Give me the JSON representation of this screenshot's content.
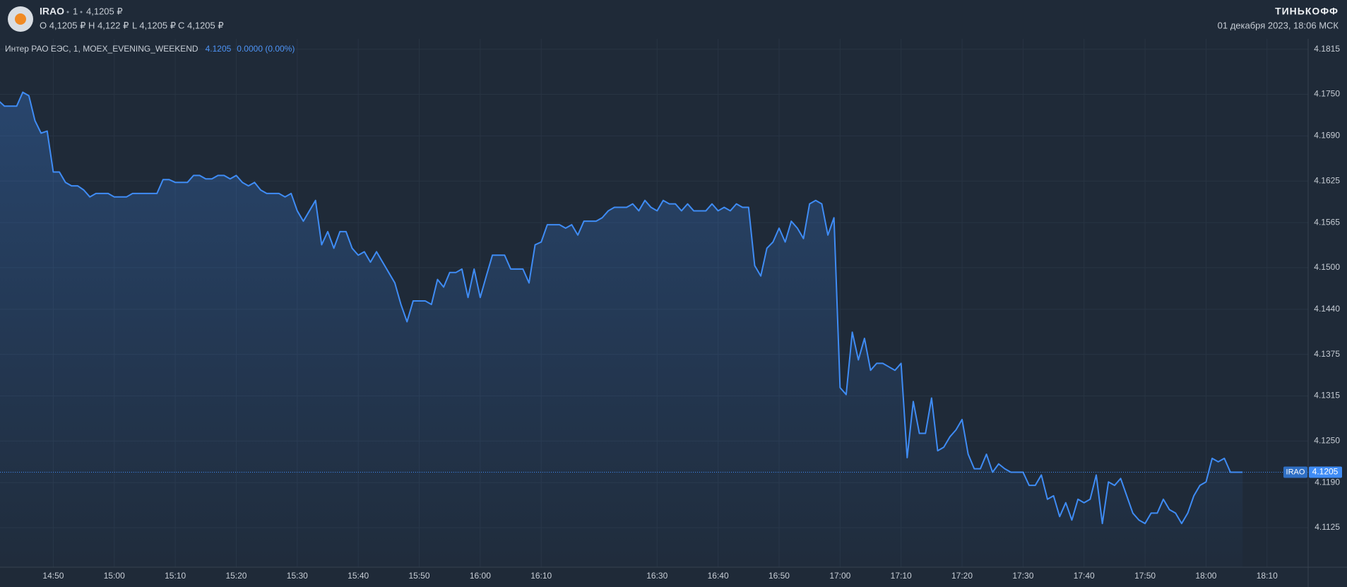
{
  "header": {
    "ticker": "IRAO",
    "interval": "1",
    "price": "4,1205 ₽",
    "ohlc": [
      "O 4,1205 ₽",
      "H 4,122 ₽",
      "L 4,1205 ₽",
      "C 4,1205 ₽"
    ],
    "brand": "ТИНЬКОФФ",
    "datetime": "01 декабря 2023, 18:06 МСК"
  },
  "chart_data": {
    "type": "line",
    "categories": [
      null,
      null,
      null,
      null,
      null,
      null,
      null,
      null,
      null,
      "14:50",
      null,
      null,
      null,
      null,
      null,
      null,
      null,
      null,
      null,
      "15:00",
      null,
      null,
      null,
      null,
      null,
      null,
      null,
      null,
      null,
      "15:10",
      null,
      null,
      null,
      null,
      null,
      null,
      null,
      null,
      null,
      "15:20",
      null,
      null,
      null,
      null,
      null,
      null,
      null,
      null,
      null,
      "15:30",
      null,
      null,
      null,
      null,
      null,
      null,
      null,
      null,
      null,
      "15:40",
      null,
      null,
      null,
      null,
      null,
      null,
      null,
      null,
      null,
      "15:50",
      null,
      null,
      null,
      null,
      null,
      null,
      null,
      null,
      null,
      "16:00",
      null,
      null,
      null,
      null,
      null,
      null,
      null,
      null,
      null,
      "16:10",
      null,
      null,
      null,
      null,
      null,
      null,
      null,
      null,
      null,
      null,
      null,
      null,
      null,
      null,
      null,
      null,
      null,
      null,
      "16:30",
      null,
      null,
      null,
      null,
      null,
      null,
      null,
      null,
      null,
      "16:40",
      null,
      null,
      null,
      null,
      null,
      null,
      null,
      null,
      null,
      "16:50",
      null,
      null,
      null,
      null,
      null,
      null,
      null,
      null,
      null,
      "17:00",
      null,
      null,
      null,
      null,
      null,
      null,
      null,
      null,
      null,
      "17:10",
      null,
      null,
      null,
      null,
      null,
      null,
      null,
      null,
      null,
      "17:20",
      null,
      null,
      null,
      null,
      null,
      null,
      null,
      null,
      null,
      "17:30",
      null,
      null,
      null,
      null,
      null,
      null,
      null,
      null,
      null,
      "17:40",
      null,
      null,
      null,
      null,
      null,
      null,
      null,
      null,
      null,
      "17:50",
      null,
      null,
      null,
      null,
      null,
      null,
      null,
      null,
      null,
      "18:00",
      null,
      null,
      null,
      null,
      null,
      null,
      null,
      null,
      null,
      "18:10"
    ],
    "series": [
      {
        "name": "Интер РАО ЕЭС, 1, MOEX_EVENING_WEEKEND",
        "color": "#3f8cf5",
        "values": [
          4.1741,
          4.1733,
          4.1733,
          4.1733,
          4.1753,
          4.1748,
          4.1712,
          4.1694,
          4.1697,
          4.1638,
          4.1638,
          4.1623,
          4.1618,
          4.1618,
          4.1612,
          4.1602,
          4.1607,
          4.1607,
          4.1607,
          4.1602,
          4.1602,
          4.1602,
          4.1607,
          4.1607,
          4.1607,
          4.1607,
          4.1607,
          4.1627,
          4.1627,
          4.1623,
          4.1623,
          4.1623,
          4.1633,
          4.1633,
          4.1628,
          4.1628,
          4.1633,
          4.1633,
          4.1628,
          4.1633,
          4.1623,
          4.1618,
          4.1623,
          4.1612,
          4.1607,
          4.1607,
          4.1607,
          4.1602,
          4.1607,
          4.1582,
          4.1567,
          4.1582,
          4.1597,
          4.1533,
          4.1552,
          4.1528,
          4.1552,
          4.1552,
          4.1528,
          4.1518,
          4.1523,
          4.1508,
          4.1523,
          4.1508,
          4.1493,
          4.1478,
          4.1447,
          4.1422,
          4.1452,
          4.1452,
          4.1452,
          4.1447,
          4.1483,
          4.1472,
          4.1493,
          4.1493,
          4.1498,
          4.1457,
          4.1498,
          4.1457,
          4.1488,
          4.1518,
          4.1518,
          4.1518,
          4.1498,
          4.1498,
          4.1498,
          4.1478,
          4.1533,
          4.1537,
          4.1562,
          4.1562,
          4.1562,
          4.1557,
          4.1562,
          4.1547,
          4.1567,
          4.1567,
          4.1567,
          4.1572,
          4.1582,
          4.1587,
          4.1587,
          4.1587,
          4.1592,
          4.1582,
          4.1597,
          4.1587,
          4.1582,
          4.1597,
          4.1592,
          4.1592,
          4.1582,
          4.1592,
          4.1582,
          4.1582,
          4.1582,
          4.1592,
          4.1582,
          4.1587,
          4.1582,
          4.1592,
          4.1587,
          4.1587,
          4.1503,
          4.1488,
          4.1528,
          4.1537,
          4.1557,
          4.1537,
          4.1567,
          4.1557,
          4.1542,
          4.1592,
          4.1597,
          4.1592,
          4.1547,
          4.1572,
          4.1327,
          4.1317,
          4.1407,
          4.1367,
          4.1398,
          4.1352,
          4.1362,
          4.1362,
          4.1357,
          4.1352,
          4.1362,
          4.1226,
          4.1307,
          4.1261,
          4.1261,
          4.1312,
          4.1236,
          4.1241,
          4.1256,
          4.1266,
          4.1281,
          4.1231,
          4.121,
          4.121,
          4.1231,
          4.1205,
          4.1217,
          4.121,
          4.1205,
          4.1205,
          4.1205,
          4.1186,
          4.1186,
          4.1201,
          4.1166,
          4.1171,
          4.1141,
          4.1161,
          4.1136,
          4.1166,
          4.1161,
          4.1166,
          4.1201,
          4.1131,
          4.1191,
          4.1186,
          4.1196,
          4.1171,
          4.1146,
          4.1136,
          4.1131,
          4.1146,
          4.1146,
          4.1166,
          4.1151,
          4.1146,
          4.1131,
          4.1146,
          4.1171,
          4.1186,
          4.1191,
          4.1225,
          4.122,
          4.1225,
          4.1205,
          4.1205,
          4.1205,
          null,
          null,
          null,
          null
        ]
      }
    ],
    "legend_last": 4.1205,
    "legend_change": "0.0000 (0.00%)",
    "last_price": {
      "label": "IRAO",
      "value": 4.1205
    },
    "ylim": [
      4.1068,
      4.183
    ],
    "yticks": [
      4.1815,
      {
        "value": 4.175,
        "label": "4.1750"
      },
      {
        "value": 4.169,
        "label": "4.1690"
      },
      4.1625,
      4.1565,
      {
        "value": 4.15,
        "label": "4.1500"
      },
      {
        "value": 4.144,
        "label": "4.1440"
      },
      4.1375,
      4.1315,
      {
        "value": 4.125,
        "label": "4.1250"
      },
      {
        "value": 4.119,
        "label": "4.1190"
      },
      4.1125
    ],
    "grid": true
  }
}
